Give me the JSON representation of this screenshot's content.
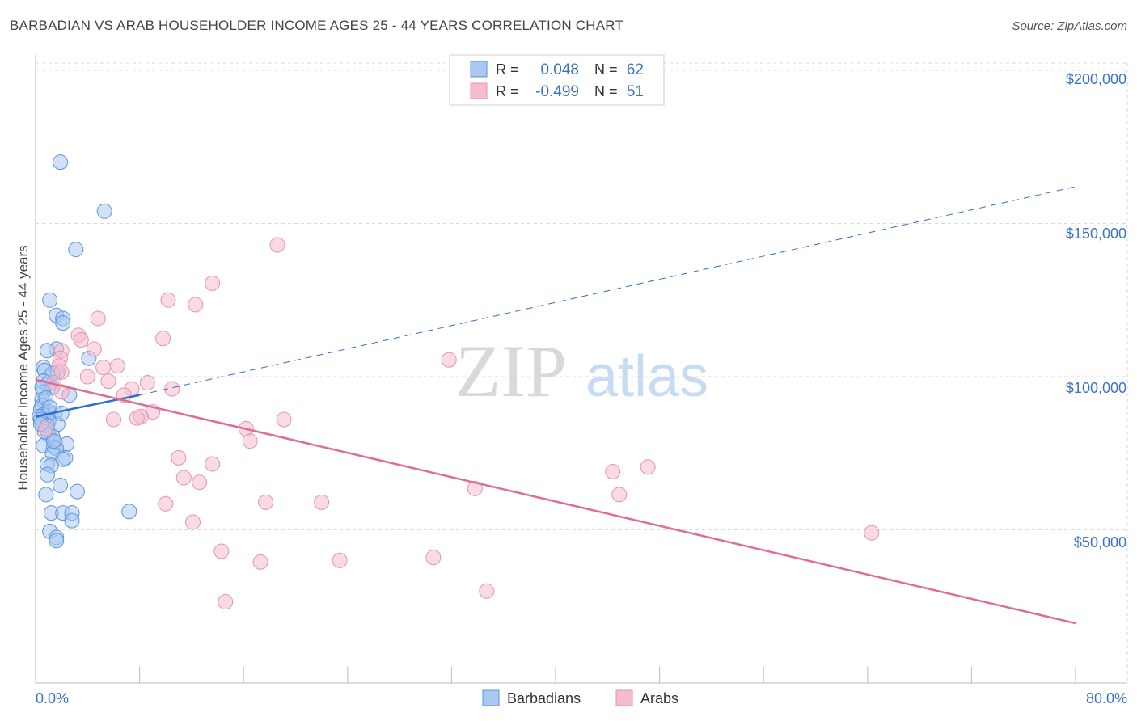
{
  "title": "BARBADIAN VS ARAB HOUSEHOLDER INCOME AGES 25 - 44 YEARS CORRELATION CHART",
  "source": "Source: ZipAtlas.com",
  "colors": {
    "blue_fill": "#a9c9f2",
    "blue_stroke": "#5b93db",
    "blue_line": "#2d6fd1",
    "pink_fill": "#f6bccd",
    "pink_stroke": "#e592ad",
    "pink_line": "#e06b97",
    "axis_text": "#3b73c9",
    "grid": "#d9d9d9"
  },
  "legend": {
    "rows": [
      {
        "r_label": "R =",
        "r_value": "0.048",
        "n_label": "N =",
        "n_value": "62",
        "color": "blue"
      },
      {
        "r_label": "R =",
        "r_value": "-0.499",
        "n_label": "N =",
        "n_value": "51",
        "color": "pink"
      }
    ]
  },
  "bottom_legend": [
    "Barbadians",
    "Arabs"
  ],
  "watermark": {
    "zip": "ZIP",
    "atlas": "atlas"
  },
  "chart_data": {
    "type": "scatter",
    "xlabel": "",
    "ylabel": "Householder Income Ages 25 - 44 years",
    "x_tick_labels": [
      "0.0%",
      "80.0%"
    ],
    "y_tick_labels": [
      "$50,000",
      "$100,000",
      "$150,000",
      "$200,000"
    ],
    "xlim": [
      0,
      80
    ],
    "ylim": [
      0,
      205000
    ],
    "y_ticks": [
      50000,
      100000,
      150000,
      200000
    ],
    "grid": true,
    "series": [
      {
        "name": "Barbadians",
        "color": "blue",
        "points": [
          [
            1.9,
            170000
          ],
          [
            5.3,
            154000
          ],
          [
            3.1,
            141500
          ],
          [
            1.1,
            125000
          ],
          [
            1.6,
            120000
          ],
          [
            2.1,
            119000
          ],
          [
            2.1,
            117500
          ],
          [
            1.6,
            109000
          ],
          [
            0.9,
            108500
          ],
          [
            4.1,
            106000
          ],
          [
            0.6,
            103000
          ],
          [
            0.7,
            102000
          ],
          [
            1.7,
            101500
          ],
          [
            1.3,
            101000
          ],
          [
            0.6,
            98500
          ],
          [
            0.9,
            97500
          ],
          [
            1.3,
            96500
          ],
          [
            0.6,
            95000
          ],
          [
            2.6,
            94000
          ],
          [
            0.5,
            92500
          ],
          [
            0.5,
            90500
          ],
          [
            0.4,
            89500
          ],
          [
            1.0,
            88500
          ],
          [
            1.5,
            88000
          ],
          [
            0.6,
            87500
          ],
          [
            0.3,
            87000
          ],
          [
            0.4,
            86000
          ],
          [
            1.0,
            85500
          ],
          [
            0.5,
            85000
          ],
          [
            1.7,
            84500
          ],
          [
            0.9,
            84000
          ],
          [
            1.0,
            81000
          ],
          [
            1.3,
            80500
          ],
          [
            1.5,
            78500
          ],
          [
            2.4,
            78000
          ],
          [
            0.6,
            77500
          ],
          [
            1.4,
            77000
          ],
          [
            1.6,
            76500
          ],
          [
            1.3,
            75000
          ],
          [
            2.3,
            73500
          ],
          [
            2.1,
            73000
          ],
          [
            0.9,
            71500
          ],
          [
            1.2,
            71000
          ],
          [
            0.9,
            68000
          ],
          [
            1.9,
            64500
          ],
          [
            3.2,
            62500
          ],
          [
            0.8,
            61500
          ],
          [
            1.2,
            55500
          ],
          [
            2.1,
            55500
          ],
          [
            2.8,
            55500
          ],
          [
            7.2,
            56000
          ],
          [
            2.8,
            53000
          ],
          [
            1.1,
            49500
          ],
          [
            1.6,
            47500
          ],
          [
            1.6,
            46500
          ],
          [
            0.5,
            96500
          ],
          [
            0.8,
            93000
          ],
          [
            1.1,
            90000
          ],
          [
            2.0,
            88000
          ],
          [
            0.7,
            82000
          ],
          [
            1.4,
            79000
          ],
          [
            0.4,
            84500
          ]
        ]
      },
      {
        "name": "Arabs",
        "color": "pink",
        "points": [
          [
            18.6,
            143000
          ],
          [
            13.6,
            130500
          ],
          [
            10.2,
            125000
          ],
          [
            12.3,
            123500
          ],
          [
            4.8,
            119000
          ],
          [
            9.8,
            112500
          ],
          [
            3.3,
            113500
          ],
          [
            3.5,
            112000
          ],
          [
            2.0,
            108500
          ],
          [
            4.5,
            109000
          ],
          [
            1.9,
            106000
          ],
          [
            31.8,
            105500
          ],
          [
            6.3,
            103500
          ],
          [
            1.8,
            103500
          ],
          [
            5.2,
            103000
          ],
          [
            2.0,
            101500
          ],
          [
            4.0,
            100000
          ],
          [
            5.6,
            98500
          ],
          [
            1.4,
            98000
          ],
          [
            8.6,
            98000
          ],
          [
            7.4,
            96000
          ],
          [
            10.5,
            96000
          ],
          [
            6.8,
            94000
          ],
          [
            9.0,
            88500
          ],
          [
            8.1,
            87000
          ],
          [
            7.8,
            86500
          ],
          [
            6.0,
            86000
          ],
          [
            19.1,
            86000
          ],
          [
            16.2,
            83000
          ],
          [
            16.5,
            79000
          ],
          [
            11.0,
            73500
          ],
          [
            13.6,
            71500
          ],
          [
            11.4,
            67000
          ],
          [
            12.6,
            65500
          ],
          [
            44.4,
            69000
          ],
          [
            47.1,
            70500
          ],
          [
            33.8,
            63500
          ],
          [
            44.9,
            61500
          ],
          [
            10.0,
            58500
          ],
          [
            17.7,
            59000
          ],
          [
            22.0,
            59000
          ],
          [
            12.1,
            52500
          ],
          [
            14.3,
            43000
          ],
          [
            17.3,
            39500
          ],
          [
            23.4,
            40000
          ],
          [
            30.6,
            41000
          ],
          [
            64.3,
            49000
          ],
          [
            34.7,
            30000
          ],
          [
            14.6,
            26500
          ],
          [
            2.0,
            95000
          ],
          [
            0.8,
            83000
          ]
        ]
      }
    ],
    "trend_lines": [
      {
        "series": "Barbadians",
        "x": [
          0,
          8
        ],
        "y": [
          87000,
          94000
        ],
        "extension_x": [
          8,
          80
        ],
        "extension_y": [
          94000,
          162000
        ]
      },
      {
        "series": "Arabs",
        "x": [
          0,
          80
        ],
        "y": [
          99000,
          19500
        ]
      }
    ]
  }
}
